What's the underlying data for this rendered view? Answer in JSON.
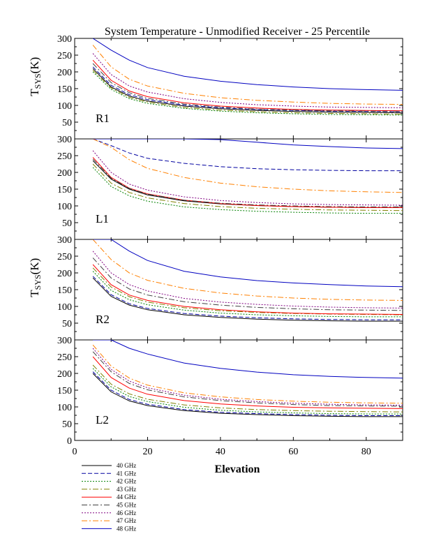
{
  "chart_data": {
    "type": "line",
    "title": "System Temperature - Unmodified Receiver - 25 Percentile",
    "xlabel": "Elevation",
    "ylabel_main": "T",
    "ylabel_sub": "SYS",
    "ylabel_unit": "(K)",
    "xlim": [
      0,
      90
    ],
    "ylim": [
      0,
      300
    ],
    "x_ticks": [
      0,
      20,
      40,
      60,
      80
    ],
    "x_tick_labels": [
      "0",
      "20",
      "40",
      "60",
      "80"
    ],
    "y_ticks": [
      50,
      100,
      150,
      200,
      250,
      300
    ],
    "y_tick_labels": [
      "50",
      "100",
      "150",
      "200",
      "250",
      "300"
    ],
    "bottom_y_ticks": [
      0,
      50,
      100,
      150,
      200,
      250,
      300
    ],
    "bottom_y_tick_labels": [
      "0",
      "50",
      "100",
      "150",
      "200",
      "250",
      "300"
    ],
    "ylabel_panels": [
      "R1",
      "R2"
    ],
    "x": [
      5,
      10,
      15,
      20,
      30,
      40,
      50,
      60,
      70,
      80,
      90
    ],
    "legend": [
      {
        "name": "40 GHz",
        "color": "#000000",
        "dash": "solid"
      },
      {
        "name": "41 GHz",
        "color": "#0000a0",
        "dash": "dash"
      },
      {
        "name": "42 GHz",
        "color": "#008000",
        "dash": "dot"
      },
      {
        "name": "43 GHz",
        "color": "#808000",
        "dash": "dashdot"
      },
      {
        "name": "44 GHz",
        "color": "#ff0000",
        "dash": "solid"
      },
      {
        "name": "45 GHz",
        "color": "#404040",
        "dash": "dashdot"
      },
      {
        "name": "46 GHz",
        "color": "#800080",
        "dash": "dot"
      },
      {
        "name": "47 GHz",
        "color": "#ff8000",
        "dash": "dashdot"
      },
      {
        "name": "48 GHz",
        "color": "#0000c0",
        "dash": "solid"
      }
    ],
    "panels": [
      {
        "label": "R1",
        "series": [
          {
            "name": "40 GHz",
            "values": [
              210,
              155,
              128,
              113,
              98,
              90,
              85,
              82,
              80,
              79,
              78
            ]
          },
          {
            "name": "41 GHz",
            "values": [
              215,
              160,
              132,
              117,
              101,
              93,
              88,
              85,
              83,
              82,
              81
            ]
          },
          {
            "name": "42 GHz",
            "values": [
              200,
              148,
              120,
              106,
              91,
              83,
              78,
              75,
              73,
              72,
              71
            ]
          },
          {
            "name": "43 GHz",
            "values": [
              205,
              152,
              124,
              110,
              94,
              86,
              81,
              78,
              76,
              75,
              74
            ]
          },
          {
            "name": "44 GHz",
            "values": [
              235,
              175,
              143,
              126,
              108,
              98,
              92,
              88,
              86,
              85,
              84
            ]
          },
          {
            "name": "45 GHz",
            "values": [
              225,
              168,
              138,
              121,
              104,
              95,
              89,
              86,
              84,
              83,
              82
            ]
          },
          {
            "name": "46 GHz",
            "values": [
              255,
              192,
              158,
              140,
              120,
              109,
              102,
              98,
              95,
              94,
              93
            ]
          },
          {
            "name": "47 GHz",
            "values": [
              280,
              215,
              178,
              158,
              136,
              123,
              115,
              110,
              106,
              104,
              103
            ]
          },
          {
            "name": "48 GHz",
            "values": [
              300,
              265,
              235,
              213,
              187,
              172,
              162,
              155,
              150,
              147,
              145
            ]
          }
        ]
      },
      {
        "label": "L1",
        "series": [
          {
            "name": "40 GHz",
            "values": [
              235,
              180,
              150,
              133,
              115,
              106,
              101,
              98,
              96,
              95,
              95
            ]
          },
          {
            "name": "41 GHz",
            "values": [
              300,
              280,
              258,
              242,
              227,
              217,
              211,
              208,
              206,
              205,
              205
            ]
          },
          {
            "name": "42 GHz",
            "values": [
              215,
              158,
              130,
              114,
              97,
              89,
              84,
              81,
              79,
              78,
              78
            ]
          },
          {
            "name": "43 GHz",
            "values": [
              225,
              168,
              140,
              124,
              107,
              98,
              93,
              90,
              88,
              87,
              86
            ]
          },
          {
            "name": "44 GHz",
            "values": [
              245,
              185,
              153,
              136,
              117,
              107,
              101,
              98,
              96,
              95,
              95
            ]
          },
          {
            "name": "45 GHz",
            "values": [
              240,
              183,
              152,
              135,
              117,
              108,
              103,
              100,
              98,
              97,
              97
            ]
          },
          {
            "name": "46 GHz",
            "values": [
              265,
              200,
              165,
              147,
              127,
              116,
              110,
              106,
              104,
              103,
              102
            ]
          },
          {
            "name": "47 GHz",
            "values": [
              300,
              275,
              238,
              212,
              185,
              168,
              157,
              150,
              145,
              142,
              140
            ]
          },
          {
            "name": "48 GHz",
            "values": [
              300,
              300,
              300,
              300,
              300,
              298,
              290,
              282,
              277,
              273,
              271
            ]
          }
        ]
      },
      {
        "label": "R2",
        "series": [
          {
            "name": "40 GHz",
            "values": [
              185,
              130,
              104,
              90,
              75,
              67,
              62,
              59,
              57,
              56,
              56
            ]
          },
          {
            "name": "41 GHz",
            "values": [
              190,
              135,
              108,
              94,
              79,
              71,
              66,
              63,
              61,
              60,
              60
            ]
          },
          {
            "name": "42 GHz",
            "values": [
              205,
              148,
              120,
              105,
              89,
              80,
              75,
              72,
              70,
              69,
              69
            ]
          },
          {
            "name": "43 GHz",
            "values": [
              215,
              158,
              129,
              113,
              96,
              87,
              82,
              79,
              77,
              76,
              75
            ]
          },
          {
            "name": "44 GHz",
            "values": [
              225,
              165,
              134,
              118,
              100,
              90,
              84,
              80,
              78,
              77,
              76
            ]
          },
          {
            "name": "45 GHz",
            "values": [
              245,
              185,
              152,
              134,
              114,
              104,
              97,
              93,
              90,
              89,
              88
            ]
          },
          {
            "name": "46 GHz",
            "values": [
              265,
              200,
              165,
              146,
              124,
              113,
              106,
              101,
              98,
              96,
              95
            ]
          },
          {
            "name": "47 GHz",
            "values": [
              300,
              240,
              200,
              178,
              154,
              140,
              131,
              125,
              121,
              119,
              118
            ]
          },
          {
            "name": "48 GHz",
            "values": [
              300,
              300,
              265,
              237,
              205,
              188,
              177,
              170,
              165,
              161,
              159
            ]
          }
        ]
      },
      {
        "label": "L2",
        "series": [
          {
            "name": "40 GHz",
            "values": [
              200,
              145,
              118,
              104,
              89,
              81,
              77,
              74,
              72,
              71,
              71
            ]
          },
          {
            "name": "41 GHz",
            "values": [
              205,
              150,
              122,
              108,
              92,
              84,
              80,
              77,
              75,
              74,
              74
            ]
          },
          {
            "name": "42 GHz",
            "values": [
              215,
              160,
              131,
              116,
              99,
              90,
              85,
              82,
              80,
              79,
              79
            ]
          },
          {
            "name": "43 GHz",
            "values": [
              225,
              168,
              139,
              123,
              106,
              97,
              92,
              89,
              87,
              86,
              85
            ]
          },
          {
            "name": "44 GHz",
            "values": [
              250,
              188,
              156,
              138,
              119,
              109,
              103,
              99,
              97,
              96,
              95
            ]
          },
          {
            "name": "45 GHz",
            "values": [
              265,
              205,
              170,
              151,
              130,
              119,
              112,
              107,
              104,
              103,
              102
            ]
          },
          {
            "name": "46 GHz",
            "values": [
              275,
              212,
              177,
              157,
              135,
              123,
              116,
              111,
              108,
              106,
              105
            ]
          },
          {
            "name": "47 GHz",
            "values": [
              285,
              222,
              186,
              165,
              142,
              130,
              122,
              117,
              114,
              112,
              111
            ]
          },
          {
            "name": "48 GHz",
            "values": [
              300,
              300,
              275,
              258,
              231,
              215,
              204,
              196,
              191,
              188,
              186
            ]
          }
        ]
      }
    ]
  }
}
